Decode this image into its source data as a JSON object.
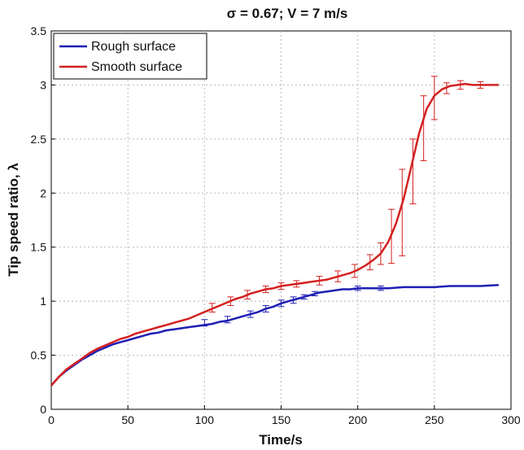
{
  "chart_data": {
    "type": "line",
    "title": "σ = 0.67; V = 7 m/s",
    "xlabel": "Time/s",
    "ylabel": "Tip speed ratio, λ",
    "xlim": [
      0,
      300
    ],
    "ylim": [
      0,
      3.5
    ],
    "xticks": [
      0,
      50,
      100,
      150,
      200,
      250,
      300
    ],
    "yticks": [
      0,
      0.5,
      1,
      1.5,
      2,
      2.5,
      3,
      3.5
    ],
    "ytick_labels": [
      "0",
      "0.5",
      "1",
      "1.5",
      "2",
      "2.5",
      "3",
      "3.5"
    ],
    "grid": true,
    "legend_position": "top-left",
    "series": [
      {
        "name": "Rough surface",
        "color": "#1f1fb4",
        "x": [
          0,
          5,
          10,
          15,
          20,
          25,
          30,
          35,
          40,
          45,
          50,
          55,
          60,
          65,
          70,
          75,
          80,
          85,
          90,
          95,
          100,
          105,
          110,
          115,
          120,
          125,
          130,
          135,
          140,
          145,
          150,
          155,
          160,
          165,
          170,
          175,
          180,
          185,
          190,
          195,
          200,
          210,
          220,
          230,
          240,
          250,
          260,
          270,
          280,
          292
        ],
        "y": [
          0.22,
          0.3,
          0.36,
          0.41,
          0.46,
          0.5,
          0.54,
          0.57,
          0.6,
          0.62,
          0.64,
          0.66,
          0.68,
          0.7,
          0.71,
          0.73,
          0.74,
          0.75,
          0.76,
          0.77,
          0.78,
          0.79,
          0.81,
          0.82,
          0.84,
          0.86,
          0.88,
          0.9,
          0.93,
          0.95,
          0.98,
          1.0,
          1.02,
          1.04,
          1.06,
          1.08,
          1.09,
          1.1,
          1.11,
          1.11,
          1.12,
          1.12,
          1.12,
          1.13,
          1.13,
          1.13,
          1.14,
          1.14,
          1.14,
          1.15
        ],
        "errorbars": [
          {
            "x": 100,
            "y": 0.8,
            "err": 0.03
          },
          {
            "x": 115,
            "y": 0.83,
            "err": 0.03
          },
          {
            "x": 130,
            "y": 0.88,
            "err": 0.03
          },
          {
            "x": 140,
            "y": 0.93,
            "err": 0.03
          },
          {
            "x": 150,
            "y": 0.98,
            "err": 0.03
          },
          {
            "x": 158,
            "y": 1.01,
            "err": 0.03
          },
          {
            "x": 165,
            "y": 1.04,
            "err": 0.02
          },
          {
            "x": 172,
            "y": 1.07,
            "err": 0.02
          },
          {
            "x": 200,
            "y": 1.12,
            "err": 0.02
          },
          {
            "x": 215,
            "y": 1.12,
            "err": 0.02
          }
        ]
      },
      {
        "name": "Smooth surface",
        "color": "#d42020",
        "x": [
          0,
          5,
          10,
          15,
          20,
          25,
          30,
          35,
          40,
          45,
          50,
          55,
          60,
          65,
          70,
          75,
          80,
          85,
          90,
          95,
          100,
          105,
          110,
          115,
          120,
          125,
          130,
          135,
          140,
          145,
          150,
          155,
          160,
          165,
          170,
          175,
          180,
          185,
          190,
          195,
          200,
          205,
          210,
          215,
          220,
          225,
          230,
          235,
          240,
          245,
          250,
          255,
          260,
          265,
          270,
          275,
          280,
          285,
          292
        ],
        "y": [
          0.22,
          0.3,
          0.37,
          0.42,
          0.47,
          0.52,
          0.56,
          0.59,
          0.62,
          0.65,
          0.67,
          0.7,
          0.72,
          0.74,
          0.76,
          0.78,
          0.8,
          0.82,
          0.84,
          0.87,
          0.9,
          0.93,
          0.96,
          0.99,
          1.02,
          1.04,
          1.07,
          1.09,
          1.11,
          1.12,
          1.14,
          1.15,
          1.16,
          1.17,
          1.18,
          1.19,
          1.2,
          1.22,
          1.24,
          1.26,
          1.29,
          1.33,
          1.38,
          1.44,
          1.55,
          1.72,
          1.95,
          2.25,
          2.55,
          2.78,
          2.9,
          2.96,
          2.99,
          3.0,
          3.01,
          3.0,
          3.0,
          3.0,
          3.0
        ],
        "errorbars": [
          {
            "x": 105,
            "y": 0.94,
            "err": 0.04
          },
          {
            "x": 117,
            "y": 1.0,
            "err": 0.04
          },
          {
            "x": 128,
            "y": 1.06,
            "err": 0.04
          },
          {
            "x": 140,
            "y": 1.11,
            "err": 0.03
          },
          {
            "x": 150,
            "y": 1.14,
            "err": 0.03
          },
          {
            "x": 160,
            "y": 1.16,
            "err": 0.03
          },
          {
            "x": 175,
            "y": 1.19,
            "err": 0.04
          },
          {
            "x": 187,
            "y": 1.23,
            "err": 0.05
          },
          {
            "x": 198,
            "y": 1.28,
            "err": 0.06
          },
          {
            "x": 208,
            "y": 1.36,
            "err": 0.07
          },
          {
            "x": 215,
            "y": 1.44,
            "err": 0.1
          },
          {
            "x": 222,
            "y": 1.6,
            "err": 0.25
          },
          {
            "x": 229,
            "y": 1.82,
            "err": 0.4
          },
          {
            "x": 236,
            "y": 2.2,
            "err": 0.3
          },
          {
            "x": 243,
            "y": 2.6,
            "err": 0.3
          },
          {
            "x": 250,
            "y": 2.88,
            "err": 0.2
          },
          {
            "x": 258,
            "y": 2.97,
            "err": 0.05
          },
          {
            "x": 267,
            "y": 3.0,
            "err": 0.04
          },
          {
            "x": 280,
            "y": 3.0,
            "err": 0.03
          }
        ]
      }
    ]
  }
}
